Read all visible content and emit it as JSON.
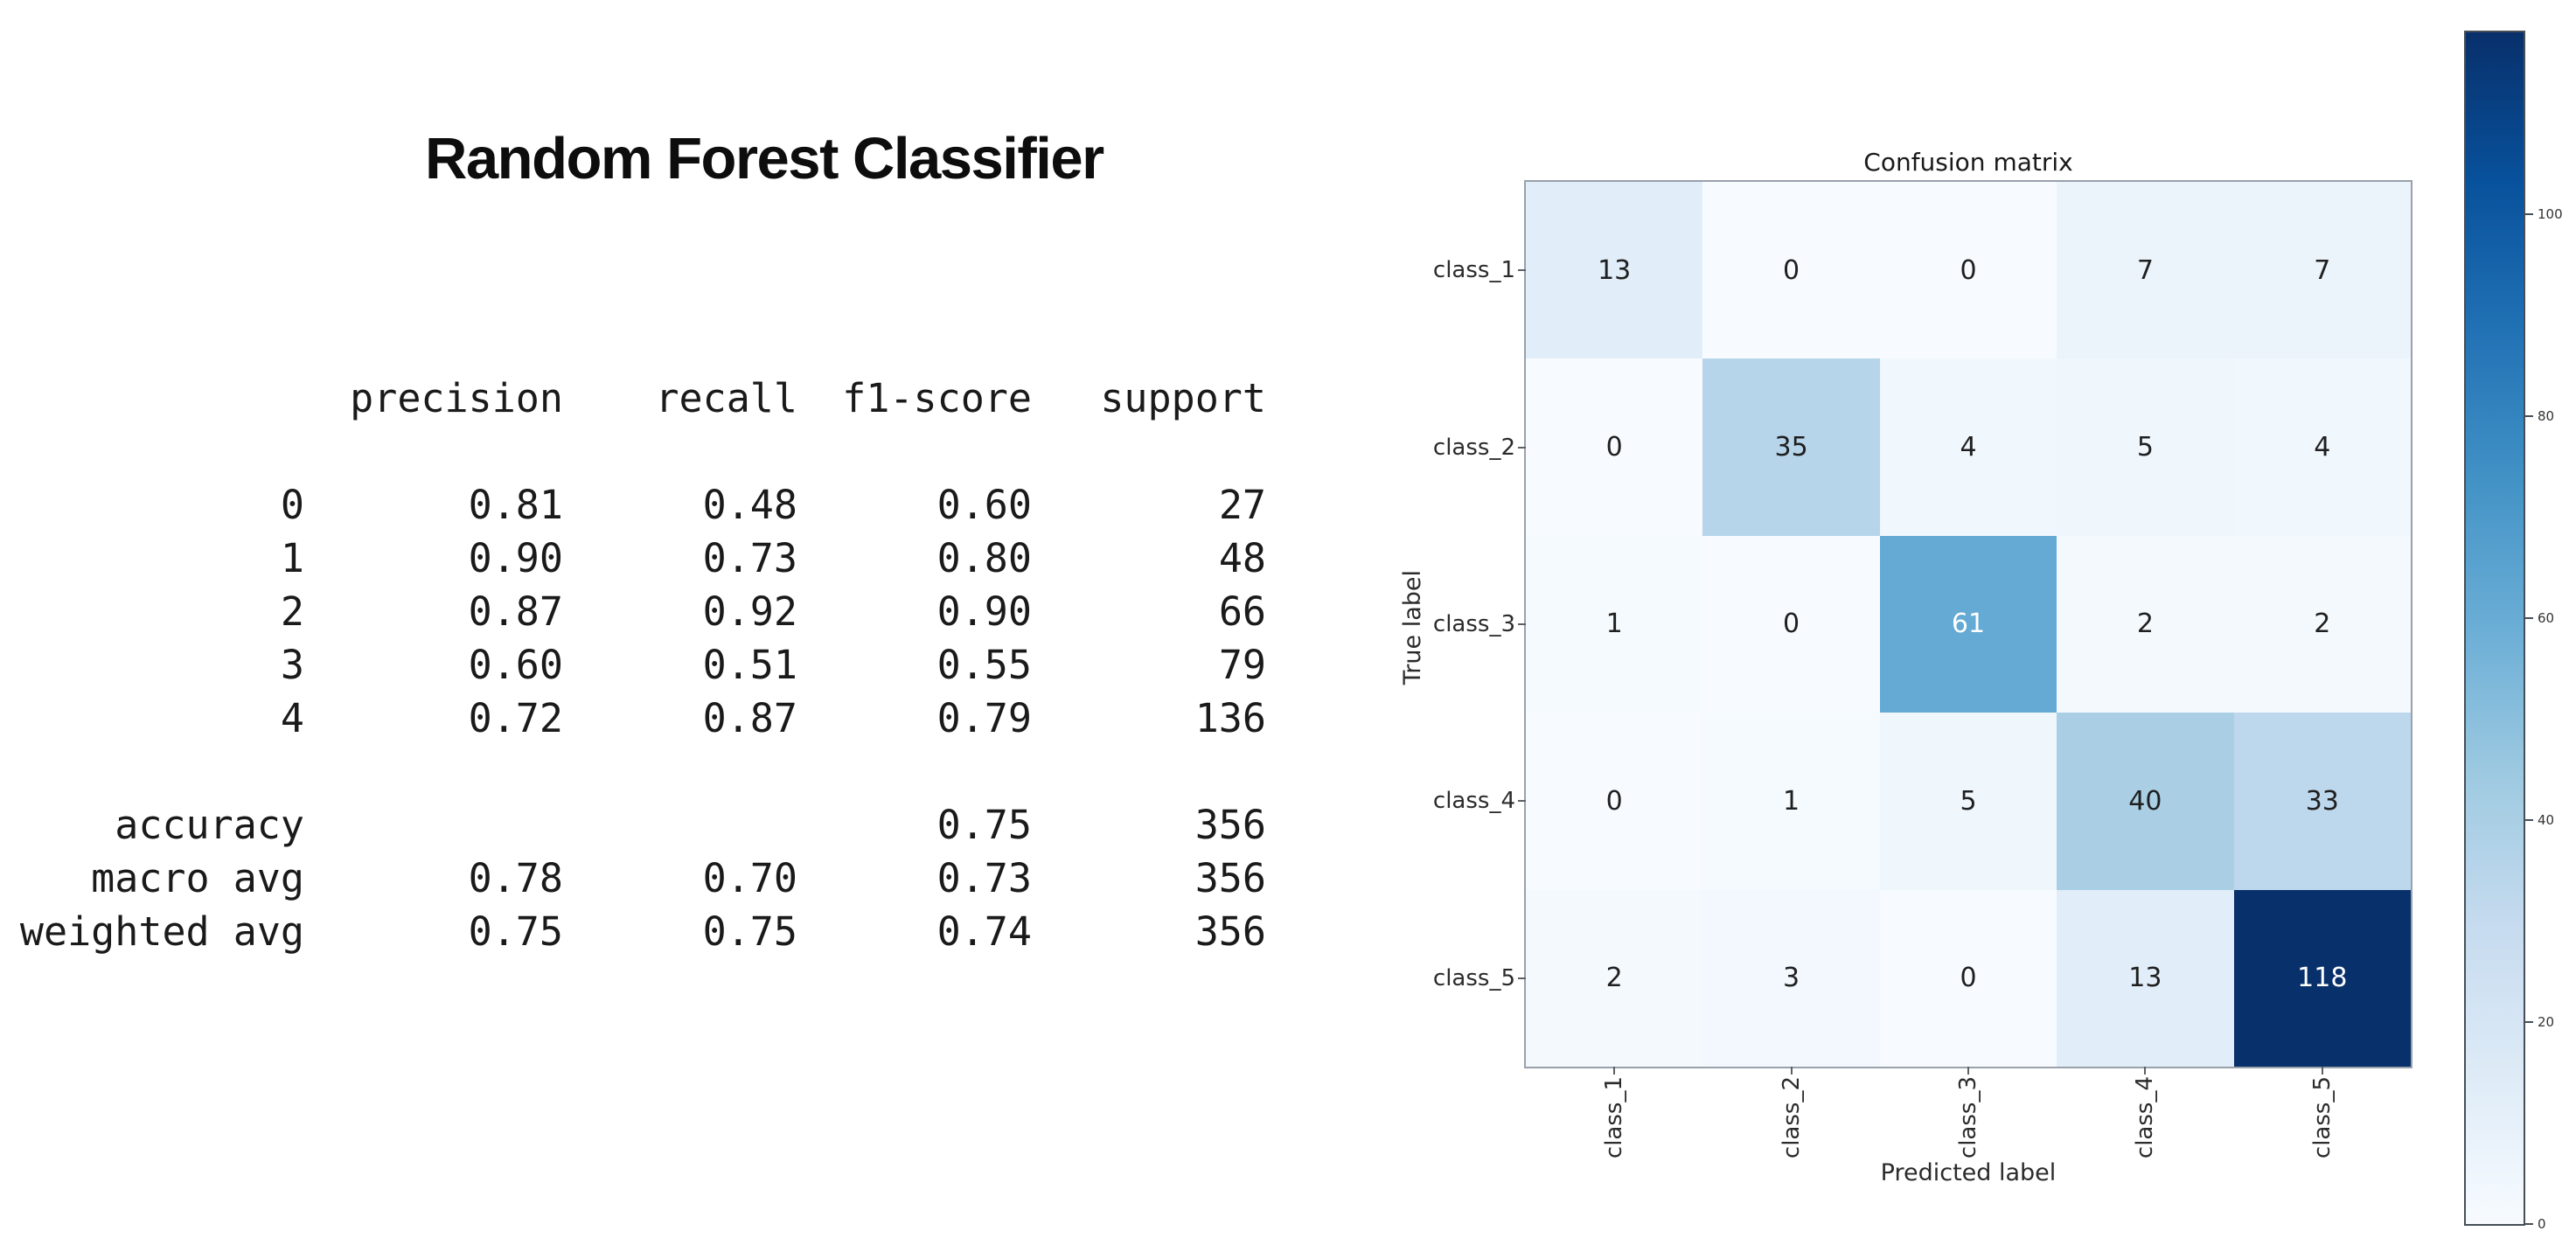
{
  "slide_title": "Random Forest Classifier",
  "chart_data": [
    {
      "type": "table",
      "name": "classification-report",
      "columns": [
        "precision",
        "recall",
        "f1-score",
        "support"
      ],
      "rows": [
        [
          "0",
          "0.81",
          "0.48",
          "0.60",
          "27"
        ],
        [
          "1",
          "0.90",
          "0.73",
          "0.80",
          "48"
        ],
        [
          "2",
          "0.87",
          "0.92",
          "0.90",
          "66"
        ],
        [
          "3",
          "0.60",
          "0.51",
          "0.55",
          "79"
        ],
        [
          "4",
          "0.72",
          "0.87",
          "0.79",
          "136"
        ]
      ],
      "summary_rows": [
        [
          "accuracy",
          "",
          "",
          "0.75",
          "356"
        ],
        [
          "macro avg",
          "0.78",
          "0.70",
          "0.73",
          "356"
        ],
        [
          "weighted avg",
          "0.75",
          "0.75",
          "0.74",
          "356"
        ]
      ]
    },
    {
      "type": "heatmap",
      "title": "Confusion matrix",
      "xlabel": "Predicted label",
      "ylabel": "True label",
      "x_categories": [
        "class_1",
        "class_2",
        "class_3",
        "class_4",
        "class_5"
      ],
      "y_categories": [
        "class_1",
        "class_2",
        "class_3",
        "class_4",
        "class_5"
      ],
      "matrix": [
        [
          13,
          0,
          0,
          7,
          7
        ],
        [
          0,
          35,
          4,
          5,
          4
        ],
        [
          1,
          0,
          61,
          2,
          2
        ],
        [
          0,
          1,
          5,
          40,
          33
        ],
        [
          2,
          3,
          0,
          13,
          118
        ]
      ],
      "colormap": "Blues",
      "vmin": 0,
      "vmax": 118,
      "colorbar_ticks": [
        0,
        20,
        40,
        60,
        80,
        100
      ],
      "colorbar_position": "right",
      "grid": false
    }
  ],
  "colors": {
    "background": "#ffffff",
    "title_text": "#0d0d0d",
    "report_text": "#1a1a1a",
    "heatmap_dark_text": "#1f1f1f",
    "heatmap_light_text": "#ffffff",
    "colormap_min": "#f7fbff",
    "colormap_max": "#08306b"
  }
}
